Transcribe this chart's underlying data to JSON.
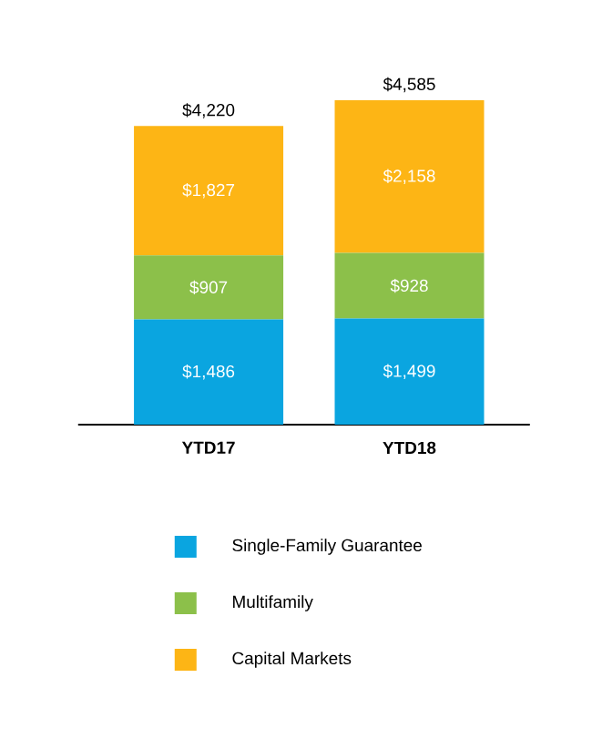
{
  "chart_data": {
    "type": "bar",
    "stacked": true,
    "categories": [
      "YTD17",
      "YTD18"
    ],
    "series": [
      {
        "name": "Single-Family Guarantee",
        "color": "#0aa5e0",
        "values": [
          1486,
          1499
        ],
        "value_labels": [
          "$1,486",
          "$1,499"
        ]
      },
      {
        "name": "Multifamily",
        "color": "#8cc04a",
        "values": [
          907,
          928
        ],
        "value_labels": [
          "$907",
          "$928"
        ]
      },
      {
        "name": "Capital Markets",
        "color": "#fdb515",
        "values": [
          1827,
          2158
        ],
        "value_labels": [
          "$1,827",
          "$2,158"
        ]
      }
    ],
    "totals": [
      "$4,220",
      "$4,585"
    ],
    "legend": "bottom"
  }
}
